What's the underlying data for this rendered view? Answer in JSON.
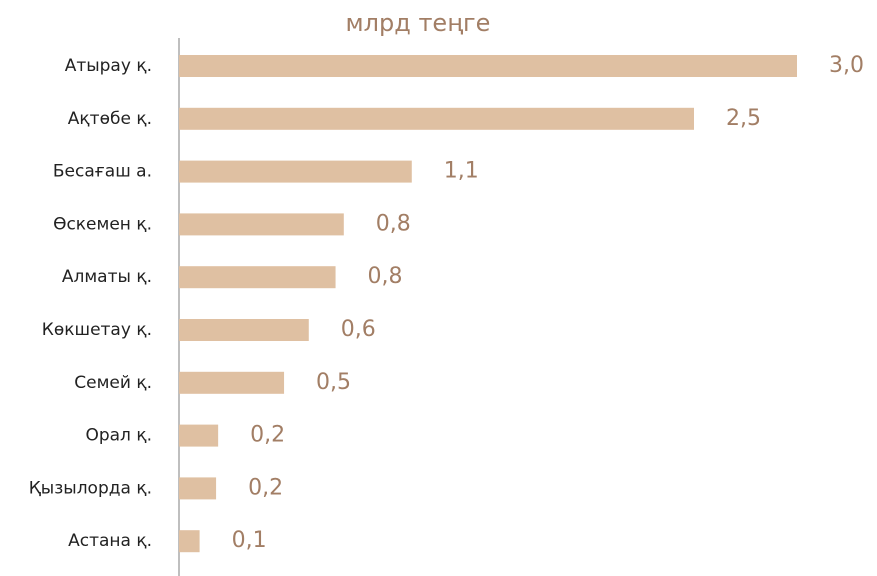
{
  "chart_data": {
    "type": "barh",
    "title": "млрд теңге",
    "categories": [
      "Атырау қ.",
      "Ақтөбе қ.",
      "Бесағаш а.",
      "Өскемен қ.",
      "Алматы қ.",
      "Көкшетау қ.",
      "Семей қ.",
      "Орал қ.",
      "Қызылорда қ.",
      "Астана қ."
    ],
    "values": [
      3.0,
      2.5,
      1.13,
      0.8,
      0.76,
      0.63,
      0.51,
      0.19,
      0.18,
      0.1
    ],
    "value_labels": [
      "3,0",
      "2,5",
      "1,1",
      "0,8",
      "0,8",
      "0,6",
      "0,5",
      "0,2",
      "0,2",
      "0,1"
    ],
    "color": "#dfc0a2",
    "xlim": [
      0,
      3.0
    ]
  }
}
